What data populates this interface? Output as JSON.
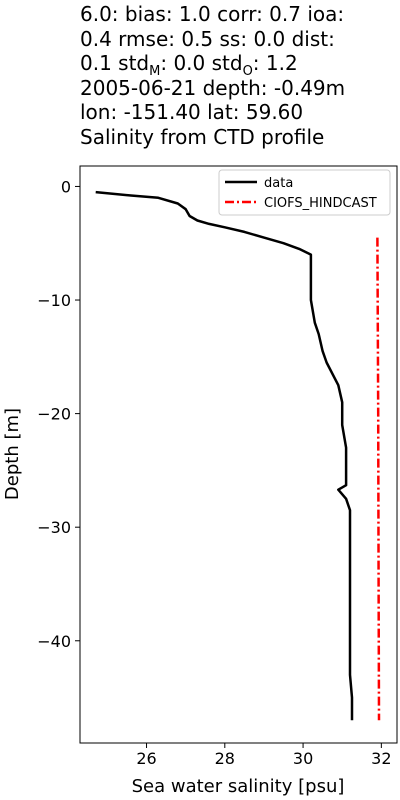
{
  "chart_data": {
    "type": "line",
    "title_lines": [
      "6.0: bias: 1.0  corr: 0.7  ioa:",
      "0.4  rmse: 0.5  ss: 0.0  dist:",
      "0.1  std_M: 0.0  std_O: 1.2",
      "2005-06-21 depth: -0.49m",
      "lon: -151.40 lat: 59.60",
      "Salinity from CTD profile"
    ],
    "title_parts": {
      "line3_a": "0.1  std",
      "line3_sub_m": "M",
      "line3_b": ": 0.0  std",
      "line3_sub_o": "O",
      "line3_c": ": 1.2"
    },
    "xlabel": "Sea water salinity [psu]",
    "ylabel": "Depth [m]",
    "xlim": [
      24.3,
      32.4
    ],
    "ylim": [
      -49.0,
      1.8
    ],
    "xticks": [
      26,
      28,
      30,
      32
    ],
    "yticks": [
      0,
      -10,
      -20,
      -30,
      -40
    ],
    "ytick_labels": [
      "0",
      "−10",
      "−20",
      "−30",
      "−40"
    ],
    "grid": false,
    "legend_position": "top-right",
    "series": [
      {
        "name": "data",
        "color": "#000000",
        "style": "solid",
        "x": [
          24.7,
          25.6,
          26.3,
          26.8,
          27.0,
          27.1,
          27.3,
          27.6,
          28.0,
          28.5,
          29.0,
          29.5,
          29.9,
          30.2,
          30.2,
          30.2,
          30.3,
          30.4,
          30.5,
          30.6,
          30.9,
          31.0,
          31.0,
          31.1,
          31.1,
          31.1,
          30.9,
          31.1,
          31.2,
          31.2,
          31.2,
          31.2,
          31.2,
          31.2,
          31.2,
          31.25,
          31.25
        ],
        "y": [
          -0.5,
          -0.8,
          -1.0,
          -1.5,
          -2.0,
          -2.6,
          -3.0,
          -3.3,
          -3.6,
          -4.0,
          -4.5,
          -5.0,
          -5.5,
          -6.0,
          -8.0,
          -10.0,
          -12.0,
          -13.0,
          -14.5,
          -15.5,
          -17.5,
          -19.0,
          -21.0,
          -23.0,
          -25.0,
          -26.3,
          -26.7,
          -27.5,
          -28.5,
          -30.0,
          -32.0,
          -36.0,
          -39.0,
          -41.0,
          -43.0,
          -45.0,
          -47.0
        ]
      },
      {
        "name": "CIOFS_HINDCAST",
        "color": "#ff0000",
        "style": "dashdot",
        "x": [
          31.9,
          31.92,
          31.93,
          31.94
        ],
        "y": [
          -4.5,
          -20.0,
          -35.0,
          -47.0
        ]
      }
    ]
  }
}
